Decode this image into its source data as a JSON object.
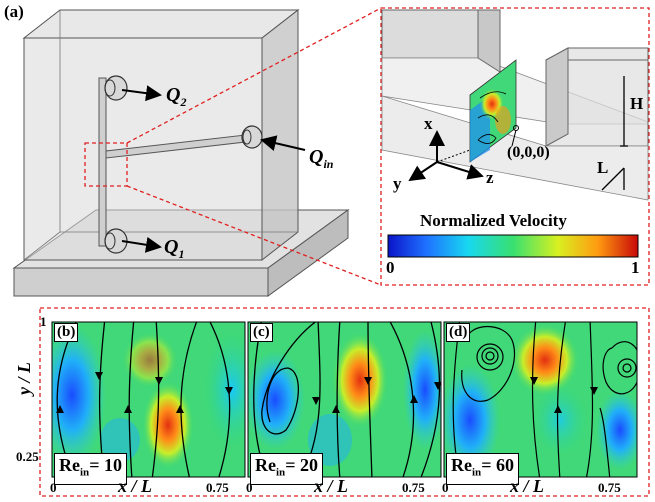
{
  "panel_a": {
    "tag": "(a)",
    "labels": {
      "q2": "Q",
      "q2_sub": "2",
      "q1": "Q",
      "q1_sub": "1",
      "qin": "Q",
      "qin_sub": "in"
    },
    "inset": {
      "axis_x": "x",
      "axis_y": "y",
      "axis_z": "z",
      "origin": "(0,0,0)",
      "dim_h": "H",
      "dim_l": "L",
      "colorbar_title": "Normalized Velocity",
      "colorbar_min": "0",
      "colorbar_max": "1"
    }
  },
  "panels": [
    {
      "tag": "(b)",
      "re_label": "Re",
      "re_sub": "in",
      "re_value": "= 10"
    },
    {
      "tag": "(c)",
      "re_label": "Re",
      "re_sub": "in",
      "re_value": "= 20"
    },
    {
      "tag": "(d)",
      "re_label": "Re",
      "re_sub": "in",
      "re_value": "= 60"
    }
  ],
  "axes": {
    "y_title": "y / L",
    "x_title": "x / L",
    "y_ticks": [
      "1",
      "0.25"
    ],
    "x_ticks": [
      "0",
      "0.75"
    ]
  },
  "colors": {
    "connector": "#e02020",
    "low": "#1a3cff",
    "high": "#e83010"
  }
}
